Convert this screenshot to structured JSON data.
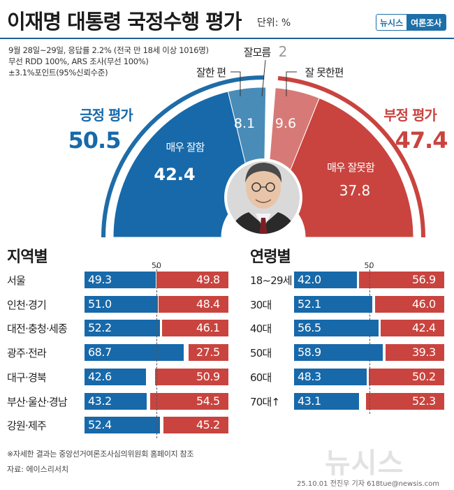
{
  "header": {
    "title": "이재명 대통령 국정수행 평가",
    "unit": "단위: %",
    "brand_a": "뉴시스",
    "brand_b": "여론조사"
  },
  "meta": {
    "line1": "9월 28일~29일, 응답률 2.2% (전국 만 18세 이상 1016명)",
    "line2": "무선 RDD 100%, ARS 조사(무선 100%)",
    "line3": "±3.1%포인트(95%신뢰수준)"
  },
  "footer": {
    "footnote": "※자세한 결과는 중앙선거여론조사심의위원회 홈페이지 참조",
    "source": "자료: 에이스리서치",
    "watermark": "뉴시스",
    "credit": "25.10.01 전진우 기자 618tue@newsis.com"
  },
  "colors": {
    "blue": "#1769aa",
    "blue_light": "#4a8cb8",
    "red": "#c9443f",
    "red_light": "#d77a77",
    "outline_blue": "#1e6ca8",
    "outline_red": "#c9443f"
  },
  "chart_data": [
    {
      "type": "pie",
      "subtype": "semicircle-gauge",
      "slices": [
        {
          "label": "매우 잘함",
          "value": 42.4,
          "group": "긍정 평가"
        },
        {
          "label": "잘한 편",
          "value": 8.1,
          "group": "긍정 평가"
        },
        {
          "label": "잘모름",
          "value": 2,
          "group": ""
        },
        {
          "label": "잘 못한편",
          "value": 9.6,
          "group": "부정 평가"
        },
        {
          "label": "매우 잘못함",
          "value": 37.8,
          "group": "부정 평가"
        }
      ],
      "groups": [
        {
          "label": "긍정 평가",
          "value": 50.5
        },
        {
          "label": "부정 평가",
          "value": 47.4
        }
      ]
    },
    {
      "type": "bar",
      "subtype": "diverging-stacked",
      "title": "지역별",
      "reference": 50,
      "categories": [
        "서울",
        "인천·경기",
        "대전·충청·세종",
        "광주·전라",
        "대구·경북",
        "부산·울산·경남",
        "강원·제주"
      ],
      "series": [
        {
          "name": "긍정",
          "values": [
            49.3,
            51.0,
            52.2,
            68.7,
            42.6,
            43.2,
            52.4
          ]
        },
        {
          "name": "부정",
          "values": [
            49.8,
            48.4,
            46.1,
            27.5,
            50.9,
            54.5,
            45.2
          ]
        }
      ]
    },
    {
      "type": "bar",
      "subtype": "diverging-stacked",
      "title": "연령별",
      "reference": 50,
      "categories": [
        "18~29세",
        "30대",
        "40대",
        "50대",
        "60대",
        "70대↑"
      ],
      "series": [
        {
          "name": "긍정",
          "values": [
            42.0,
            52.1,
            56.5,
            58.9,
            48.3,
            43.1
          ]
        },
        {
          "name": "부정",
          "values": [
            56.9,
            46.0,
            42.4,
            39.3,
            50.2,
            52.3
          ]
        }
      ]
    }
  ]
}
